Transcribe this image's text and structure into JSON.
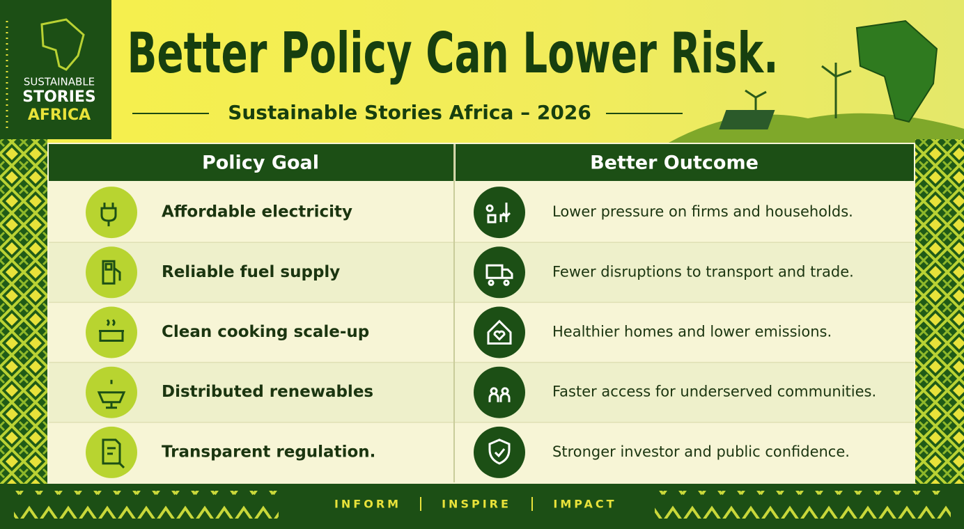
{
  "logo": {
    "lines": [
      "SUSTAINABLE",
      "STORIES",
      "AFRICA"
    ]
  },
  "header": {
    "title": "Better Policy Can Lower Risk.",
    "subtitle": "Sustainable Stories Africa – 2026"
  },
  "table": {
    "columns": [
      "Policy Goal",
      "Better Outcome"
    ],
    "rows": [
      [
        "Affordable electricity",
        "Lower pressure on firms and households."
      ],
      [
        "Reliable fuel supply",
        "Fewer disruptions to transport and trade."
      ],
      [
        "Clean cooking scale-up",
        "Healthier homes and lower emissions."
      ],
      [
        "Distributed renewables",
        "Faster access for underserved communities."
      ],
      [
        "Transparent regulation.",
        "Stronger investor and public confidence."
      ]
    ]
  },
  "footer": {
    "items": [
      "INFORM",
      "INSPIRE",
      "IMPACT"
    ]
  }
}
